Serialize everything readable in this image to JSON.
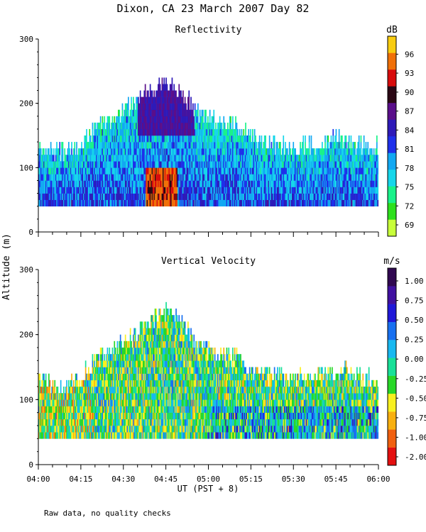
{
  "page": {
    "title": "Dixon, CA 23 March 2007  Day  82",
    "ylabel": "Altitude (m)",
    "xlabel": "UT  (PST + 8)",
    "footnote": "Raw data, no quality checks"
  },
  "chart_data": [
    {
      "type": "heatmap",
      "title": "Reflectivity",
      "colorbar_unit": "dB",
      "x_range": [
        "04:00",
        "06:00"
      ],
      "x_ticks": [
        "04:00",
        "04:15",
        "04:30",
        "04:45",
        "05:00",
        "05:15",
        "05:30",
        "05:45",
        "06:00"
      ],
      "ylim": [
        0,
        300
      ],
      "y_ticks": [
        0,
        100,
        200,
        300
      ],
      "data_bottom_altitude": 40,
      "colorbar": {
        "labels": [
          "69",
          "72",
          "75",
          "78",
          "81",
          "84",
          "87",
          "90",
          "93",
          "96"
        ],
        "colors": [
          "#c8ff3a",
          "#2ee01c",
          "#19f28a",
          "#16d6ea",
          "#12a8f2",
          "#1e30ea",
          "#2e1ab8",
          "#5a0e8a",
          "#2a0814",
          "#d80c0c",
          "#f07008",
          "#f8cc10"
        ]
      },
      "echo_top_profile_m": [
        [
          0,
          130
        ],
        [
          10,
          125
        ],
        [
          15,
          135
        ],
        [
          20,
          160
        ],
        [
          25,
          175
        ],
        [
          30,
          185
        ],
        [
          35,
          205
        ],
        [
          40,
          225
        ],
        [
          45,
          235
        ],
        [
          50,
          220
        ],
        [
          55,
          190
        ],
        [
          60,
          175
        ],
        [
          65,
          170
        ],
        [
          70,
          165
        ],
        [
          75,
          150
        ],
        [
          80,
          140
        ],
        [
          90,
          130
        ],
        [
          100,
          140
        ],
        [
          105,
          145
        ],
        [
          110,
          140
        ],
        [
          120,
          130
        ]
      ],
      "features": [
        {
          "label": "peak reflectivity core",
          "time_range": [
            "04:40",
            "04:47"
          ],
          "altitude_range": [
            40,
            90
          ],
          "value_range_dB": [
            90,
            96
          ]
        }
      ]
    },
    {
      "type": "heatmap",
      "title": "Vertical Velocity",
      "colorbar_unit": "m/s",
      "x_range": [
        "04:00",
        "06:00"
      ],
      "x_ticks": [
        "04:00",
        "04:15",
        "04:30",
        "04:45",
        "05:00",
        "05:15",
        "05:30",
        "05:45",
        "06:00"
      ],
      "ylim": [
        0,
        300
      ],
      "y_ticks": [
        0,
        100,
        200,
        300
      ],
      "data_bottom_altitude": 40,
      "colorbar": {
        "labels": [
          "1.00",
          "0.75",
          "0.50",
          "0.25",
          "0.00",
          "-0.25",
          "-0.50",
          "-0.75",
          "-1.00",
          "-2.00"
        ],
        "colors": [
          "#e41010",
          "#f06010",
          "#f8b010",
          "#f8f020",
          "#28d828",
          "#18e098",
          "#18b8f0",
          "#1870f0",
          "#2018d8",
          "#4010a0",
          "#300850"
        ]
      },
      "echo_top_profile_m": [
        [
          0,
          130
        ],
        [
          10,
          125
        ],
        [
          15,
          135
        ],
        [
          20,
          160
        ],
        [
          25,
          175
        ],
        [
          30,
          185
        ],
        [
          35,
          205
        ],
        [
          40,
          225
        ],
        [
          45,
          235
        ],
        [
          50,
          220
        ],
        [
          55,
          190
        ],
        [
          60,
          175
        ],
        [
          65,
          170
        ],
        [
          70,
          165
        ],
        [
          75,
          150
        ],
        [
          80,
          140
        ],
        [
          90,
          130
        ],
        [
          100,
          140
        ],
        [
          105,
          145
        ],
        [
          110,
          140
        ],
        [
          120,
          130
        ]
      ]
    }
  ]
}
